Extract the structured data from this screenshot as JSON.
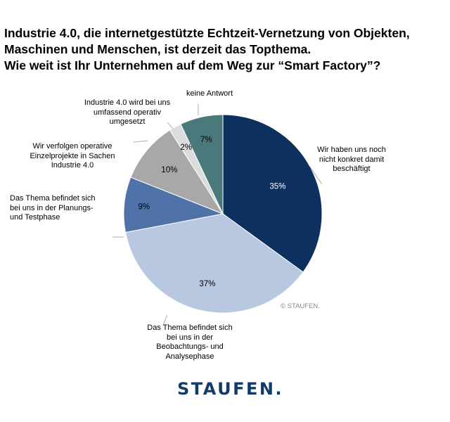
{
  "chart_data": {
    "type": "pie",
    "title": [
      "Industrie 4.0, die internetgestützte Echtzeit-Vernetzung von Objekten,",
      "Maschinen und Menschen, ist derzeit das Topthema.",
      "Wie weit ist Ihr Unternehmen auf dem Weg zur “Smart Factory”?"
    ],
    "start_angle": "12 o'clock, clockwise",
    "slices": [
      {
        "label": "Wir haben uns noch nicht konkret damit beschäftigt",
        "value": 35,
        "value_label": "35%",
        "color": "#0d305f",
        "text_color": "#ffffff"
      },
      {
        "label": "Das Thema befindet sich bei uns in der Beobachtungs- und Analysephase",
        "value": 37,
        "value_label": "37%",
        "color": "#b8c8e1",
        "text_color": "#000000"
      },
      {
        "label": "Das Thema befindet sich bei uns in der Planungs- und Testphase",
        "value": 9,
        "value_label": "9%",
        "color": "#4f73a8",
        "text_color": "#000000"
      },
      {
        "label": "Wir verfolgen operative Einzelprojekte in Sachen Industrie 4.0",
        "value": 10,
        "value_label": "10%",
        "color": "#a8a8a8",
        "text_color": "#000000"
      },
      {
        "label": "Industrie 4.0 wird bei uns umfassend operativ umgesetzt",
        "value": 2,
        "value_label": "2%",
        "color": "#dcdcdc",
        "text_color": "#000000"
      },
      {
        "label": "keine Antwort",
        "value": 7,
        "value_label": "7%",
        "color": "#4a797b",
        "text_color": "#000000"
      }
    ]
  },
  "labels_lines": {
    "s0": [
      "Wir haben uns noch",
      "nicht konkret damit",
      "beschäftigt"
    ],
    "s1": [
      "Das Thema befindet sich",
      "bei uns in der",
      "Beobachtungs- und",
      "Analysephase"
    ],
    "s2": [
      "Das Thema befindet sich",
      "bei uns in der Planungs-",
      "und Testphase"
    ],
    "s3": [
      "Wir verfolgen operative",
      "Einzelprojekte in Sachen",
      "Industrie 4.0"
    ],
    "s4": [
      "Industrie 4.0 wird bei uns",
      "umfassend operativ",
      "umgesetzt"
    ],
    "s5": [
      "keine Antwort"
    ]
  },
  "copyright": "© STAUFEN.",
  "logo": "STAUFEN."
}
